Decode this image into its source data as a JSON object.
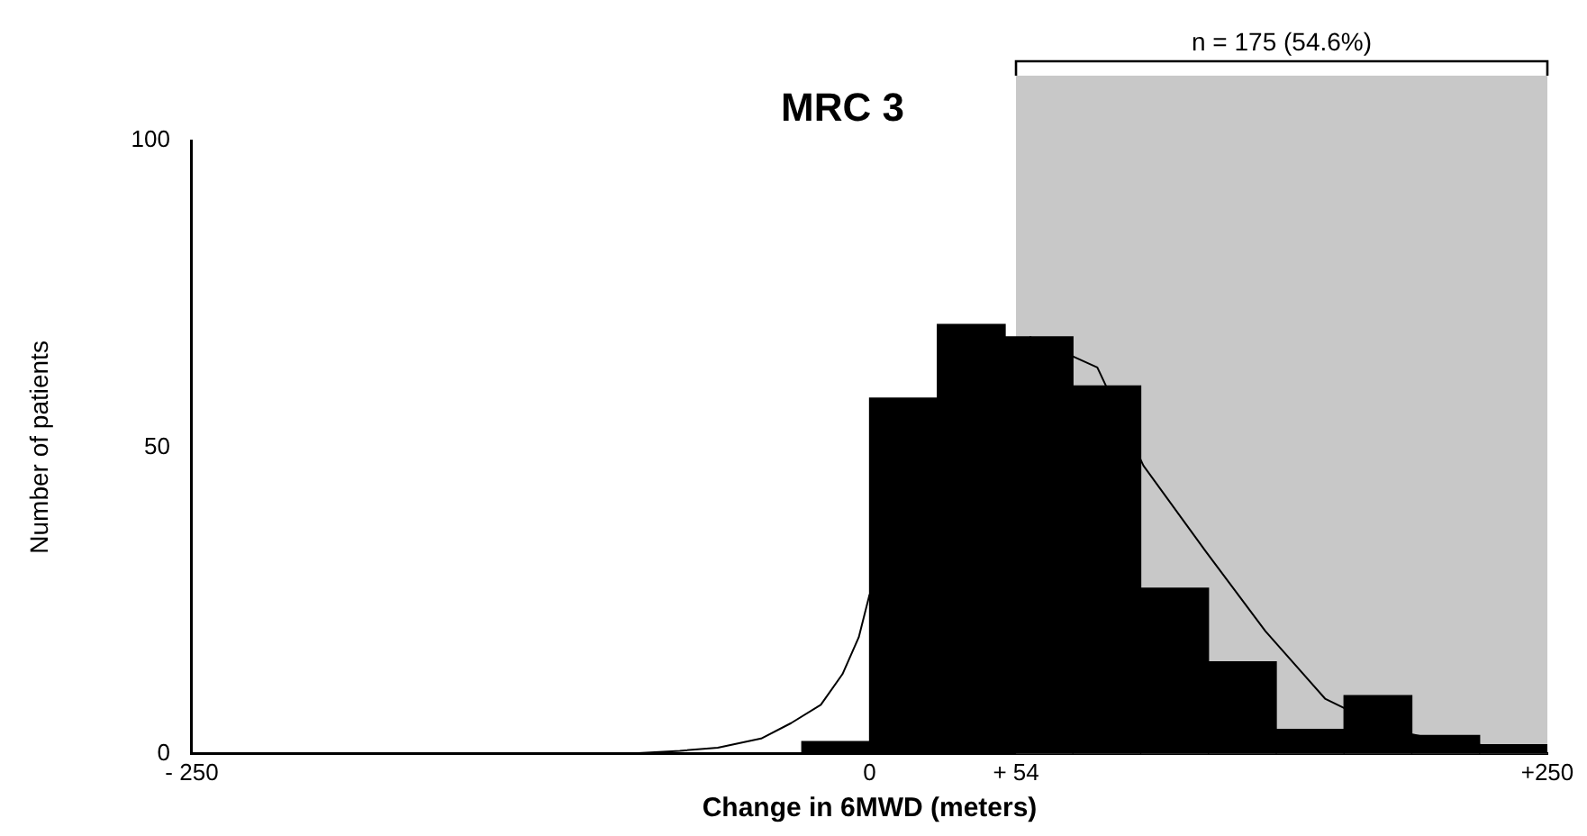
{
  "chart_data": {
    "type": "histogram",
    "title": "MRC 3",
    "xlabel": "Change in 6MWD (meters)",
    "ylabel": "Number of patients",
    "series": [
      {
        "color": "#000000",
        "bins": [
          -25,
          0,
          25,
          50,
          75,
          100,
          125,
          150,
          175,
          200,
          225,
          250
        ],
        "values": [
          2,
          58,
          70,
          68,
          60,
          27,
          15,
          4,
          9.5,
          3,
          1.5
        ]
      },
      {
        "type": "line",
        "color": "#000000",
        "x": [
          -90,
          -70,
          -56,
          -40,
          -29,
          -18,
          -10,
          -4,
          0,
          10,
          59,
          84,
          101,
          124,
          146,
          168,
          191,
          213,
          236,
          250
        ],
        "values": [
          0,
          0.5,
          1,
          2.5,
          5,
          8,
          13,
          19,
          26,
          null,
          68,
          63,
          47,
          33,
          20,
          9,
          4,
          2,
          1,
          0.5
        ]
      }
    ],
    "xlim": [
      -250,
      250
    ],
    "xticks": [
      {
        "value": -250,
        "label": "- 250"
      },
      0,
      {
        "value": 54,
        "label": "+ 54"
      },
      {
        "value": 250,
        "label": "+250"
      }
    ],
    "ylim": [
      0,
      100
    ],
    "yticks": [
      0,
      50,
      100
    ],
    "grid": false,
    "legend": false,
    "marker": "none",
    "line_style": "solid",
    "bands": [
      {
        "axis": "x",
        "from": 54,
        "to": 250,
        "label": "n = 175 (54.6%)",
        "color": "#c8c8c8"
      }
    ]
  }
}
